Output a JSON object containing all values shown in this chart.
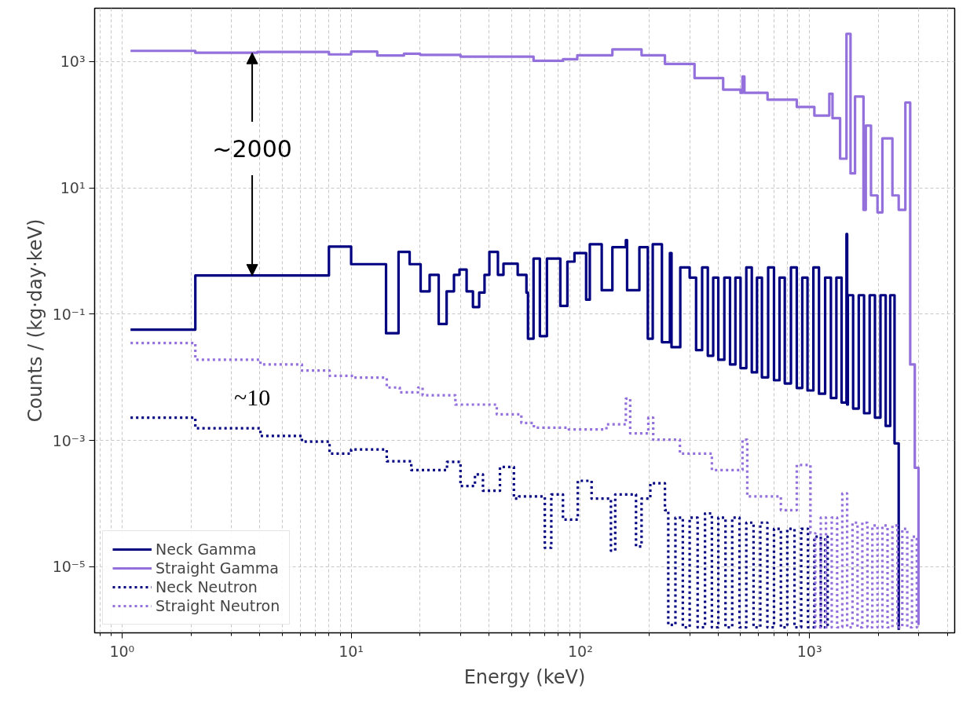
{
  "chart_data": {
    "type": "step",
    "xlabel": "Energy (keV)",
    "ylabel": "Counts / (kg·day·keV)",
    "log": "xy",
    "grid": true,
    "legend": "bottom left",
    "xlim": [
      0.76,
      4300
    ],
    "ylim": [
      9e-07,
      7000
    ],
    "xticks": [
      {
        "value": 0.8,
        "label": null
      },
      {
        "value": 0.9,
        "label": null
      },
      {
        "value": 1,
        "label": "10⁰"
      },
      {
        "value": 2,
        "label": null
      },
      {
        "value": 3,
        "label": null
      },
      {
        "value": 4,
        "label": null
      },
      {
        "value": 5,
        "label": null
      },
      {
        "value": 6,
        "label": null
      },
      {
        "value": 7,
        "label": null
      },
      {
        "value": 8,
        "label": null
      },
      {
        "value": 9,
        "label": null
      },
      {
        "value": 10,
        "label": "10¹"
      },
      {
        "value": 20,
        "label": null
      },
      {
        "value": 30,
        "label": null
      },
      {
        "value": 40,
        "label": null
      },
      {
        "value": 50,
        "label": null
      },
      {
        "value": 60,
        "label": null
      },
      {
        "value": 70,
        "label": null
      },
      {
        "value": 80,
        "label": null
      },
      {
        "value": 90,
        "label": null
      },
      {
        "value": 100,
        "label": "10²"
      },
      {
        "value": 200,
        "label": null
      },
      {
        "value": 300,
        "label": null
      },
      {
        "value": 400,
        "label": null
      },
      {
        "value": 500,
        "label": null
      },
      {
        "value": 600,
        "label": null
      },
      {
        "value": 700,
        "label": null
      },
      {
        "value": 800,
        "label": null
      },
      {
        "value": 900,
        "label": null
      },
      {
        "value": 1000,
        "label": "10³"
      },
      {
        "value": 2000,
        "label": null
      },
      {
        "value": 3000,
        "label": null
      },
      {
        "value": 4000,
        "label": null
      }
    ],
    "yticks": [
      {
        "value": 1e-05,
        "label": "10⁻⁵"
      },
      {
        "value": 0.001,
        "label": "10⁻³"
      },
      {
        "value": 0.1,
        "label": "10⁻¹"
      },
      {
        "value": 10,
        "label": "10¹"
      },
      {
        "value": 1000,
        "label": "10³"
      }
    ],
    "annotations": [
      {
        "text": "~2000",
        "x": 3.7,
        "y": 1380
      },
      "~10"
    ],
    "series": [
      {
        "name": "Neck Gamma",
        "color": "#000080",
        "line_style": "solid",
        "x": [
          1.09,
          2.09,
          8.0,
          10.0,
          14.2,
          16.1,
          18.0,
          20.1,
          22.0,
          24.1,
          26.1,
          28.1,
          29.7,
          31.9,
          34.0,
          36.2,
          38.2,
          40.1,
          43.7,
          46.2,
          53.3,
          58.2,
          59.1,
          62.5,
          66.6,
          71.5,
          81.8,
          87.8,
          94.3,
          106,
          110,
          124,
          138,
          158,
          160,
          181,
          197,
          207,
          227,
          246,
          250,
          273,
          300,
          320,
          340,
          360,
          380,
          400,
          425,
          450,
          475,
          500,
          530,
          560,
          590,
          620,
          660,
          700,
          740,
          780,
          830,
          880,
          930,
          980,
          1040,
          1100,
          1170,
          1240,
          1310,
          1380,
          1450,
          1460,
          1470,
          1550,
          1640,
          1730,
          1830,
          1930,
          2040,
          2150,
          2250,
          2350,
          2450
        ],
        "values": [
          0.057,
          0.41,
          1.18,
          0.62,
          0.05,
          0.97,
          0.62,
          0.23,
          0.42,
          0.07,
          0.23,
          0.42,
          0.51,
          0.23,
          0.13,
          0.22,
          0.42,
          0.97,
          0.42,
          0.63,
          0.42,
          0.22,
          0.041,
          0.76,
          0.045,
          0.76,
          0.135,
          0.68,
          0.93,
          0.17,
          1.28,
          0.24,
          1.15,
          1.49,
          0.24,
          1.15,
          0.041,
          1.28,
          0.036,
          0.93,
          0.03,
          0.55,
          0.38,
          0.027,
          0.55,
          0.022,
          0.38,
          0.019,
          0.38,
          0.016,
          0.38,
          0.014,
          0.55,
          0.012,
          0.38,
          0.01,
          0.55,
          0.009,
          0.38,
          0.008,
          0.55,
          0.0068,
          0.38,
          0.0062,
          0.55,
          0.0055,
          0.38,
          0.0047,
          0.38,
          0.004,
          1.86,
          0.0037,
          0.2,
          0.0032,
          0.2,
          0.0027,
          0.2,
          0.0023,
          0.2,
          0.0017,
          0.2,
          0.0009,
          1e-06
        ]
      },
      {
        "name": "Straight Gamma",
        "color": "#9370db",
        "line_style": "solid",
        "x": [
          1.09,
          2.09,
          3.9,
          8.0,
          10.0,
          13,
          17,
          20,
          30,
          40.3,
          62.5,
          84,
          97,
          138,
          185,
          234,
          315,
          420,
          500,
          510,
          520,
          656,
          880,
          1050,
          1220,
          1260,
          1360,
          1450,
          1510,
          1580,
          1720,
          1760,
          1855,
          1980,
          2080,
          2200,
          2300,
          2450,
          2620,
          2750,
          2880,
          2990
        ],
        "values": [
          1480,
          1380,
          1420,
          1300,
          1440,
          1250,
          1330,
          1280,
          1200,
          1200,
          1030,
          1090,
          1260,
          1560,
          1260,
          920,
          550,
          360,
          320,
          580,
          320,
          250,
          192,
          140,
          310,
          127,
          29,
          2760,
          17,
          280,
          4.5,
          97,
          7.6,
          4.1,
          61,
          61,
          7.6,
          4.5,
          225,
          0.016,
          0.00037,
          1.2e-06
        ]
      },
      {
        "name": "Neck Neutron",
        "color": "#000080",
        "line_style": "dotted",
        "x": [
          1.09,
          2.09,
          4.02,
          6.1,
          8.05,
          10.0,
          14.3,
          18.3,
          26.2,
          30,
          34.7,
          37.6,
          44.6,
          51.3,
          54,
          70,
          74.7,
          84,
          97.5,
          112,
          136,
          142,
          175,
          185,
          202,
          234,
          242,
          260,
          280,
          300,
          325,
          350,
          375,
          400,
          430,
          460,
          495,
          530,
          570,
          610,
          655,
          700,
          750,
          800,
          860,
          920,
          985,
          1050,
          1120,
          1170,
          1200
        ],
        "values": [
          0.0023,
          0.00156,
          0.00118,
          0.00096,
          0.00062,
          0.00072,
          0.00047,
          0.00034,
          0.00046,
          0.00019,
          0.00029,
          0.00016,
          0.00038,
          0.00012,
          0.00013,
          2e-05,
          0.00014,
          5.6e-05,
          0.00023,
          0.00012,
          1.8e-05,
          0.00014,
          2.1e-05,
          0.00012,
          0.00021,
          7.9e-05,
          1.2e-06,
          6e-05,
          1.1e-06,
          6e-05,
          1.1e-06,
          7e-05,
          1.1e-06,
          6e-05,
          1.1e-06,
          6e-05,
          1.1e-06,
          5e-05,
          1.1e-06,
          5e-05,
          1.1e-06,
          4e-05,
          1.1e-06,
          4e-05,
          1.1e-06,
          4e-05,
          1.1e-06,
          3e-05,
          1.1e-06,
          3e-05,
          1.1e-06
        ]
      },
      {
        "name": "Straight Neutron",
        "color": "#9370db",
        "line_style": "dotted",
        "x": [
          1.09,
          2.09,
          4.02,
          6.1,
          8.05,
          10.2,
          14.3,
          16.3,
          19.6,
          20.5,
          28.5,
          43.2,
          55.3,
          62.7,
          89,
          130,
          158,
          165,
          198,
          208,
          272,
          375,
          510,
          535,
          750,
          880,
          1010,
          1060,
          1120,
          1180,
          1250,
          1320,
          1390,
          1460,
          1540,
          1620,
          1700,
          1790,
          1880,
          1980,
          2080,
          2190,
          2300,
          2420,
          2540,
          2670,
          2800,
          2940,
          2990
        ],
        "values": [
          0.035,
          0.019,
          0.016,
          0.0128,
          0.0106,
          0.0099,
          0.0069,
          0.0058,
          0.0069,
          0.0052,
          0.0037,
          0.0026,
          0.0019,
          0.0016,
          0.0015,
          0.0018,
          0.0046,
          0.0013,
          0.0023,
          0.00103,
          0.00062,
          0.00034,
          0.00103,
          0.00013,
          7.9e-05,
          0.00041,
          3.4e-05,
          1.1e-06,
          6e-05,
          1.1e-06,
          6e-05,
          1.1e-06,
          0.000145,
          1.1e-06,
          5e-05,
          1.1e-06,
          5e-05,
          1.1e-06,
          4.5e-05,
          1.1e-06,
          4.5e-05,
          1.1e-06,
          4.5e-05,
          1.1e-06,
          4e-05,
          1.1e-06,
          3e-05,
          1.1e-06,
          1.1e-06
        ]
      }
    ]
  }
}
